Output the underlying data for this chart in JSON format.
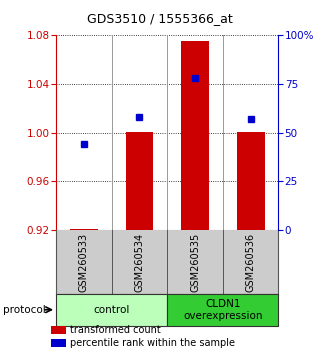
{
  "title": "GDS3510 / 1555366_at",
  "samples": [
    "GSM260533",
    "GSM260534",
    "GSM260535",
    "GSM260536"
  ],
  "transformed_count": [
    0.921,
    1.001,
    1.075,
    1.001
  ],
  "percentile_rank": [
    44,
    58,
    78,
    57
  ],
  "ylim_left": [
    0.92,
    1.08
  ],
  "ylim_right": [
    0,
    100
  ],
  "yticks_left": [
    0.92,
    0.96,
    1.0,
    1.04,
    1.08
  ],
  "yticks_right": [
    0,
    25,
    50,
    75,
    100
  ],
  "ytick_labels_right": [
    "0",
    "25",
    "50",
    "75",
    "100%"
  ],
  "bar_color": "#cc0000",
  "dot_color": "#0000cc",
  "bar_bottom": 0.92,
  "groups": [
    {
      "label": "control",
      "samples": [
        0,
        1
      ],
      "color": "#bbffbb"
    },
    {
      "label": "CLDN1\noverexpression",
      "samples": [
        2,
        3
      ],
      "color": "#33cc33"
    }
  ],
  "protocol_label": "protocol",
  "legend_items": [
    {
      "color": "#cc0000",
      "label": "transformed count"
    },
    {
      "color": "#0000cc",
      "label": "percentile rank within the sample"
    }
  ],
  "sample_box_color": "#cccccc",
  "background_color": "#ffffff",
  "left_axis_color": "#cc0000",
  "right_axis_color": "#0000cc"
}
